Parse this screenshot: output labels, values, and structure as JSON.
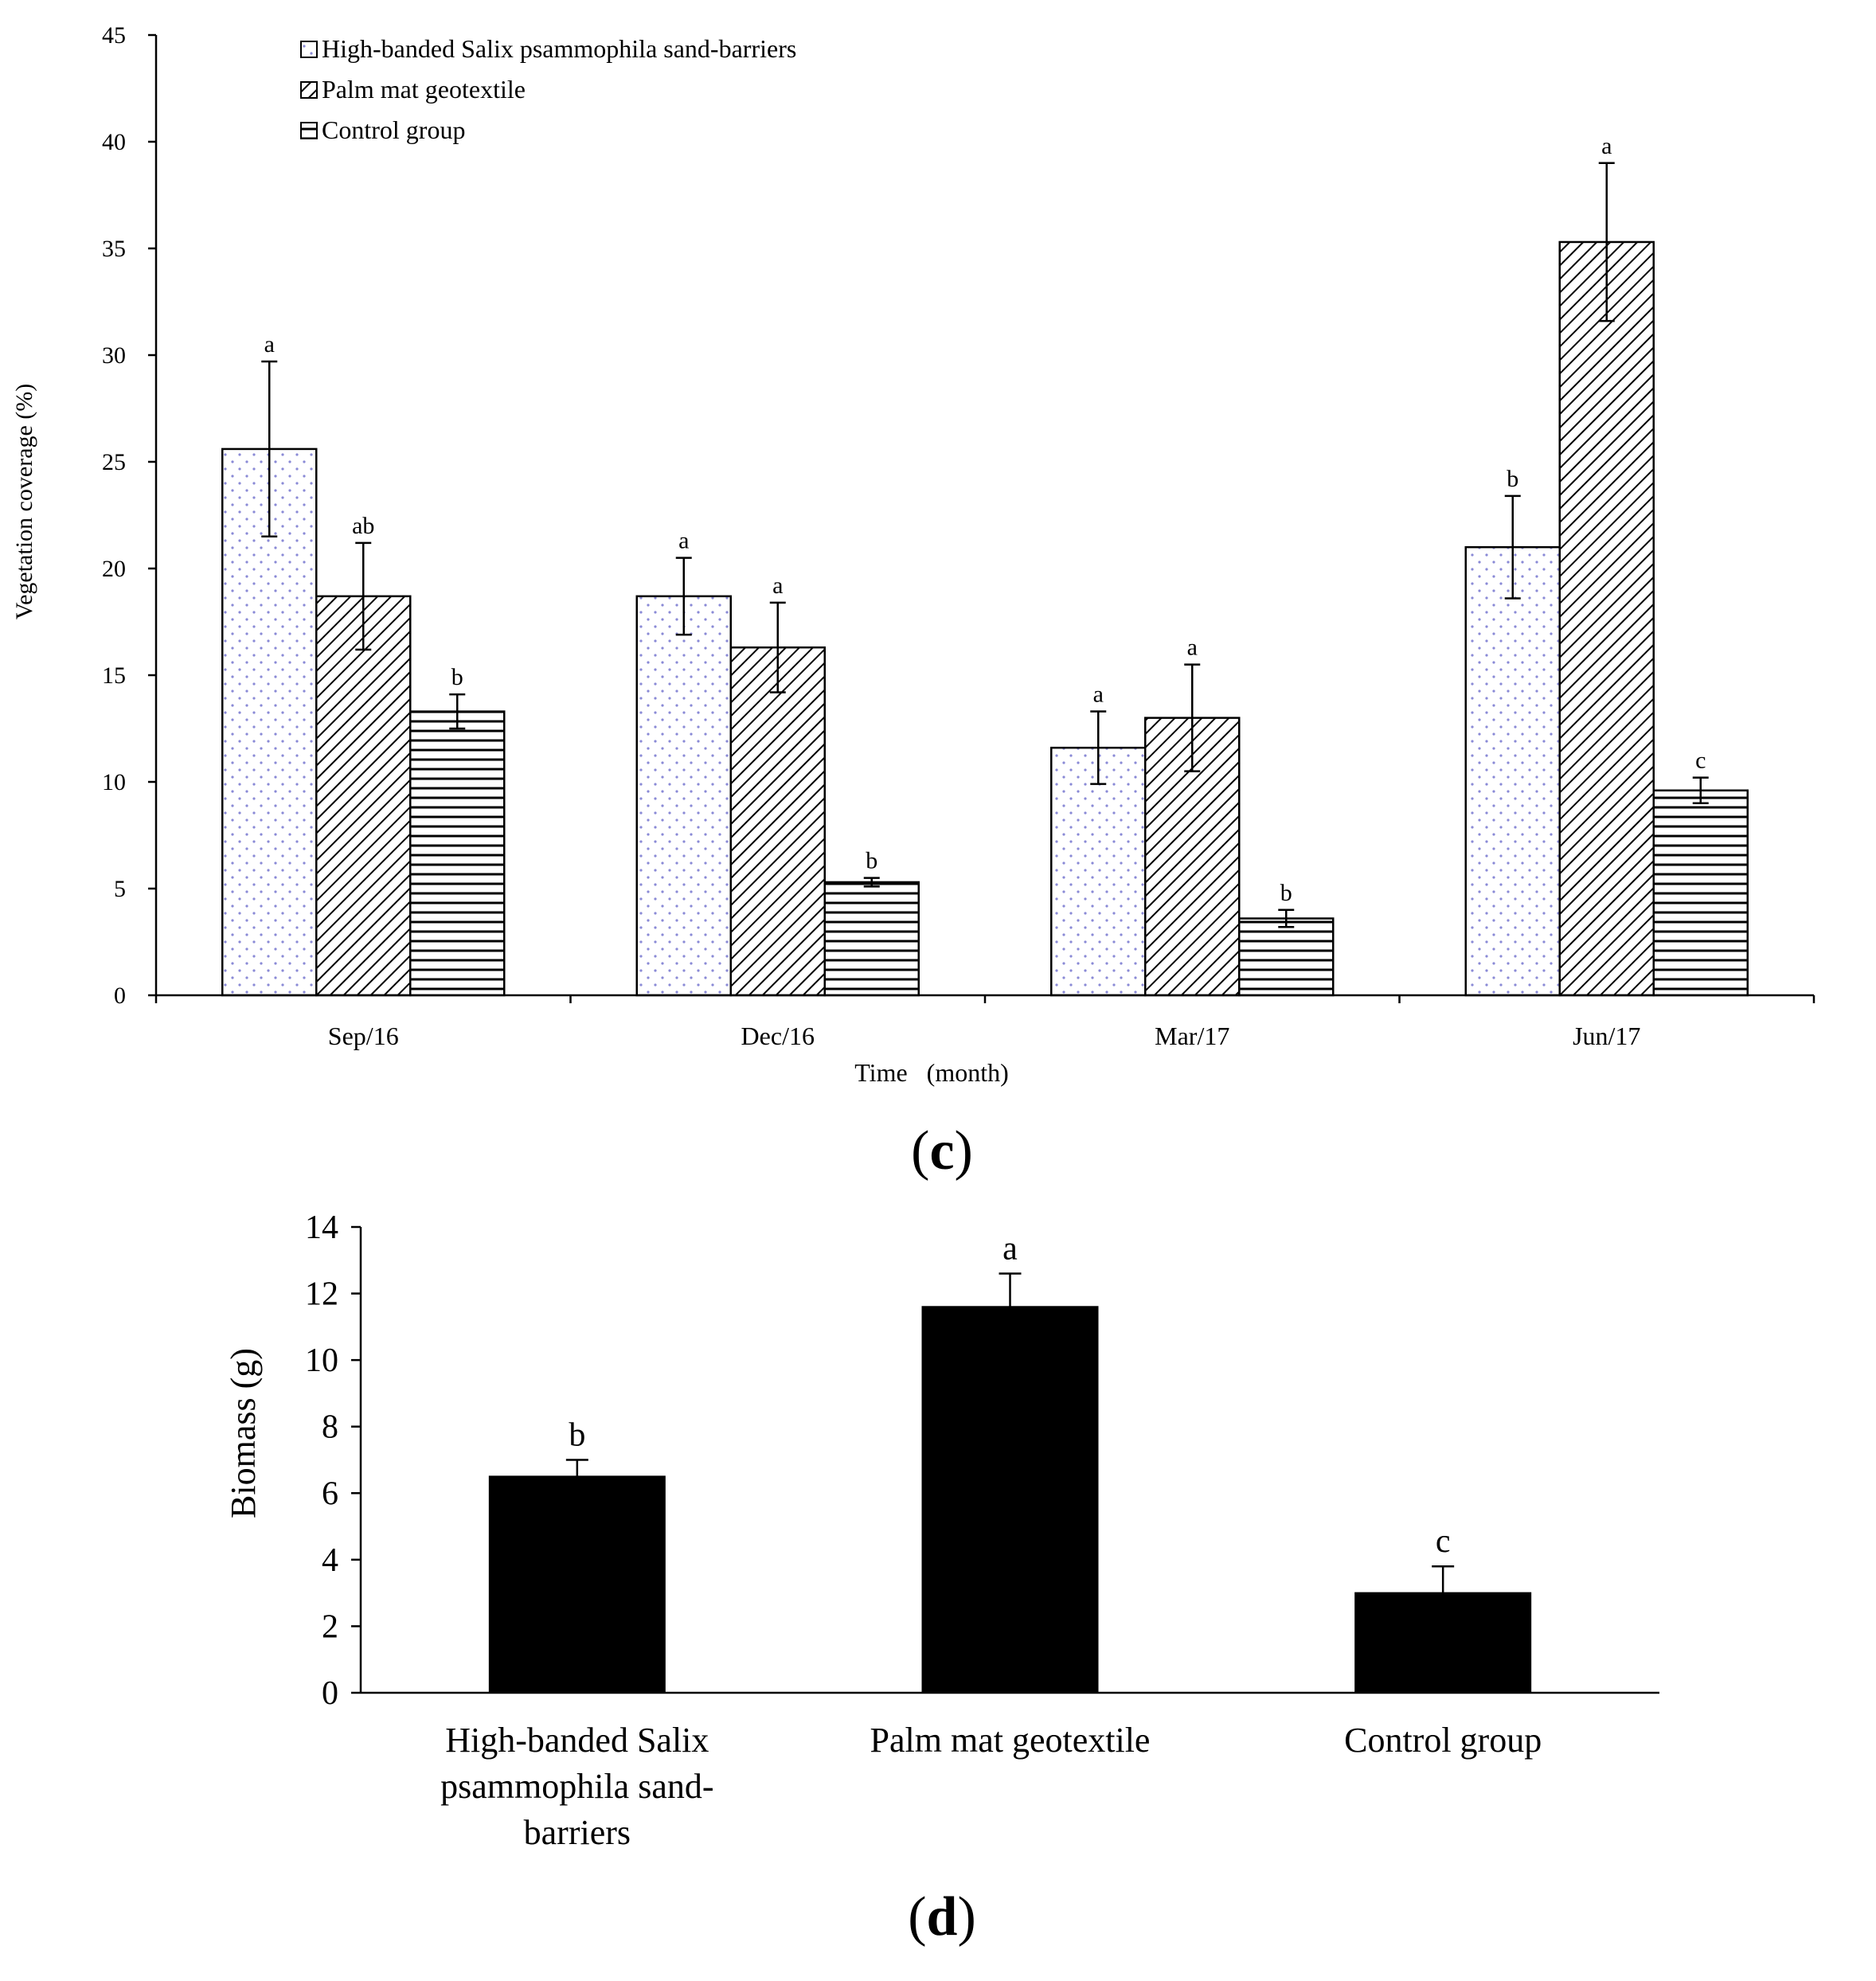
{
  "chart_data": [
    {
      "panel_label": "c",
      "type": "bar",
      "categories": [
        "Sep/16",
        "Dec/16",
        "Mar/17",
        "Jun/17"
      ],
      "series": [
        {
          "name": "High-banded Salix psammophila sand-barriers",
          "pattern": "dots",
          "values": [
            25.6,
            18.7,
            11.6,
            21.0
          ],
          "errors": [
            4.1,
            1.8,
            1.7,
            2.4
          ],
          "letters": [
            "a",
            "a",
            "a",
            "b"
          ]
        },
        {
          "name": "Palm mat geotextile",
          "pattern": "diagonal",
          "values": [
            18.7,
            16.3,
            13.0,
            35.3
          ],
          "errors": [
            2.5,
            2.1,
            2.5,
            3.7
          ],
          "letters": [
            "ab",
            "a",
            "a",
            "a"
          ]
        },
        {
          "name": "Control group",
          "pattern": "horizontal",
          "values": [
            13.3,
            5.3,
            3.6,
            9.6
          ],
          "errors": [
            0.8,
            0.2,
            0.4,
            0.6
          ],
          "letters": [
            "b",
            "b",
            "b",
            "c"
          ]
        }
      ],
      "xlabel": "Time   (month)",
      "ylabel": "Vegetation coverage (%)",
      "ylim": [
        0,
        45
      ],
      "yticks": [
        0,
        5,
        10,
        15,
        20,
        25,
        30,
        35,
        40,
        45
      ],
      "legend_position": "top-left"
    },
    {
      "panel_label": "d",
      "type": "bar",
      "categories": [
        "High-banded Salix psammophila sand-barriers",
        "Palm mat geotextile",
        "Control group"
      ],
      "category_lines": [
        [
          "High-banded Salix",
          "psammophila sand-",
          "barriers"
        ],
        [
          "Palm mat geotextile"
        ],
        [
          "Control group"
        ]
      ],
      "values": [
        6.5,
        11.6,
        3.0
      ],
      "errors": [
        0.5,
        1.0,
        0.8
      ],
      "letters": [
        "b",
        "a",
        "c"
      ],
      "xlabel": "",
      "ylabel": "Biomass (g)",
      "ylim": [
        0,
        14
      ],
      "yticks": [
        0,
        2,
        4,
        6,
        8,
        10,
        12,
        14
      ],
      "bar_color": "#000000"
    }
  ],
  "captions": {
    "c_text": "c",
    "d_text": "d"
  }
}
